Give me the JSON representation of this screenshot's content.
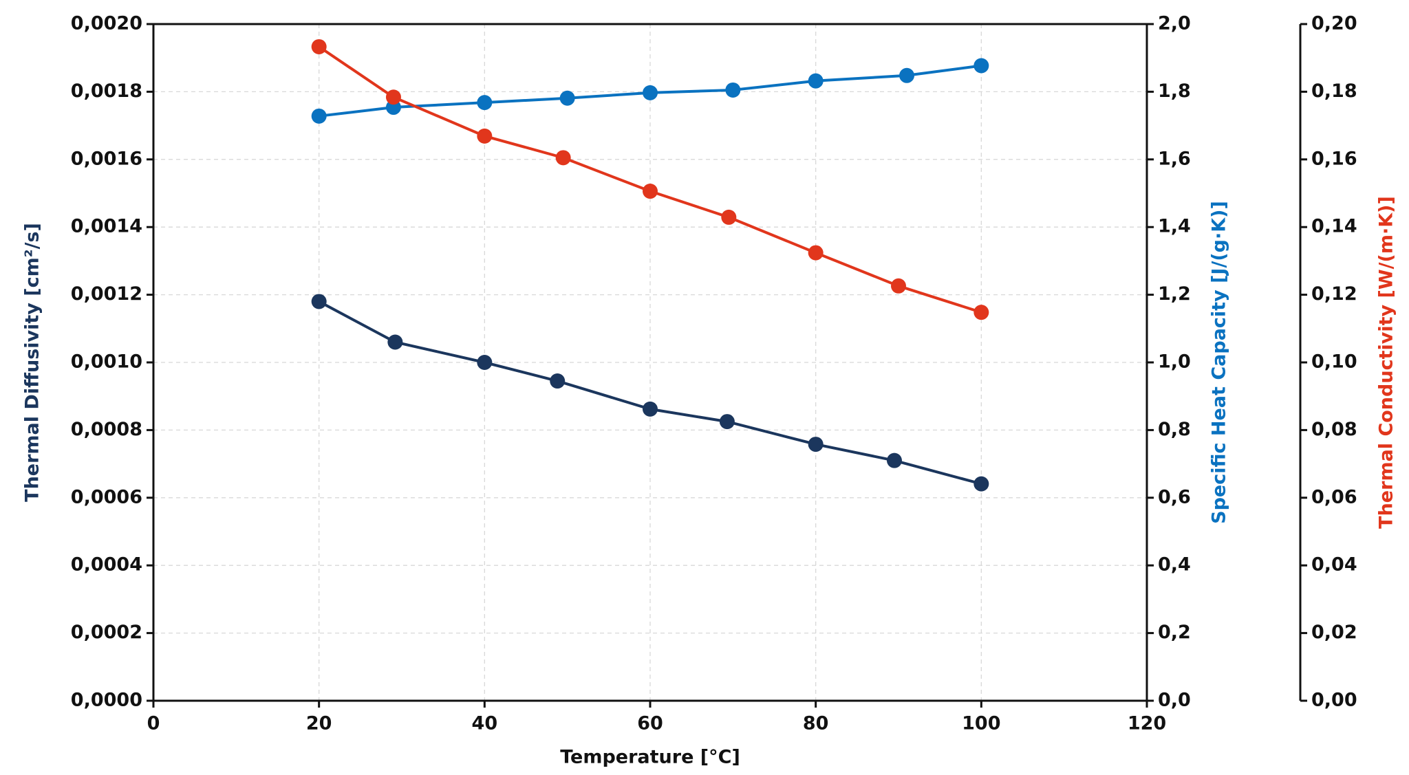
{
  "chart_data": {
    "type": "line",
    "x_label": "Temperature [°C]",
    "y_label": "Thermal Diffusivity [cm²/s]",
    "y2_label": "Specific Heat Capacity [J/(g·K)]",
    "y3_label": "Thermal Conductivity [W/(m·K)]",
    "xlim": [
      0,
      120
    ],
    "xticks": [
      0,
      20,
      40,
      60,
      80,
      100,
      120
    ],
    "ylim": [
      0,
      0.002
    ],
    "yticks": [
      {
        "value": 0,
        "label": "0,0000"
      },
      {
        "value": 0.0002,
        "label": "0,0002"
      },
      {
        "value": 0.0004,
        "label": "0,0004"
      },
      {
        "value": 0.0006,
        "label": "0,0006"
      },
      {
        "value": 0.0008,
        "label": "0,0008"
      },
      {
        "value": 0.001,
        "label": "0,0010"
      },
      {
        "value": 0.0012,
        "label": "0,0012"
      },
      {
        "value": 0.0014,
        "label": "0,0014"
      },
      {
        "value": 0.0016,
        "label": "0,0016"
      },
      {
        "value": 0.0018,
        "label": "0,0018"
      },
      {
        "value": 0.002,
        "label": "0,0020"
      }
    ],
    "y2lim": [
      0,
      2
    ],
    "y2ticks": [
      {
        "value": 0,
        "label": "0,0"
      },
      {
        "value": 0.2,
        "label": "0,2"
      },
      {
        "value": 0.4,
        "label": "0,4"
      },
      {
        "value": 0.6,
        "label": "0,6"
      },
      {
        "value": 0.8,
        "label": "0,8"
      },
      {
        "value": 1,
        "label": "1,0"
      },
      {
        "value": 1.2,
        "label": "1,2"
      },
      {
        "value": 1.4,
        "label": "1,4"
      },
      {
        "value": 1.6,
        "label": "1,6"
      },
      {
        "value": 1.8,
        "label": "1,8"
      },
      {
        "value": 2,
        "label": "2,0"
      }
    ],
    "y3lim": [
      0,
      0.2
    ],
    "y3ticks": [
      {
        "value": 0,
        "label": "0,00"
      },
      {
        "value": 0.02,
        "label": "0,02"
      },
      {
        "value": 0.04,
        "label": "0,04"
      },
      {
        "value": 0.06,
        "label": "0,06"
      },
      {
        "value": 0.08,
        "label": "0,08"
      },
      {
        "value": 0.1,
        "label": "0,10"
      },
      {
        "value": 0.12,
        "label": "0,12"
      },
      {
        "value": 0.14,
        "label": "0,14"
      },
      {
        "value": 0.16,
        "label": "0,16"
      },
      {
        "value": 0.18,
        "label": "0,18"
      },
      {
        "value": 0.2,
        "label": "0,20"
      }
    ],
    "grid": true,
    "series": [
      {
        "axis": "y",
        "color": "#1b365d",
        "x": [
          20,
          29.2,
          40,
          48.8,
          60,
          69.3,
          80,
          89.5,
          100
        ],
        "values": [
          0.00118,
          0.00106,
          0.001,
          0.000945,
          0.000862,
          0.000825,
          0.000758,
          0.00071,
          0.000641
        ]
      },
      {
        "axis": "y2",
        "color": "#0a72c0",
        "x": [
          20,
          29,
          40,
          50,
          60,
          70,
          80,
          91,
          100
        ],
        "values": [
          1.728,
          1.754,
          1.768,
          1.781,
          1.797,
          1.805,
          1.832,
          1.848,
          1.877
        ]
      },
      {
        "axis": "y3",
        "color": "#e1361c",
        "x": [
          20,
          29,
          40,
          49.5,
          60,
          69.5,
          80,
          90,
          100
        ],
        "values": [
          0.1933,
          0.1784,
          0.1669,
          0.1605,
          0.1506,
          0.1429,
          0.1324,
          0.1226,
          0.1148
        ]
      }
    ]
  }
}
